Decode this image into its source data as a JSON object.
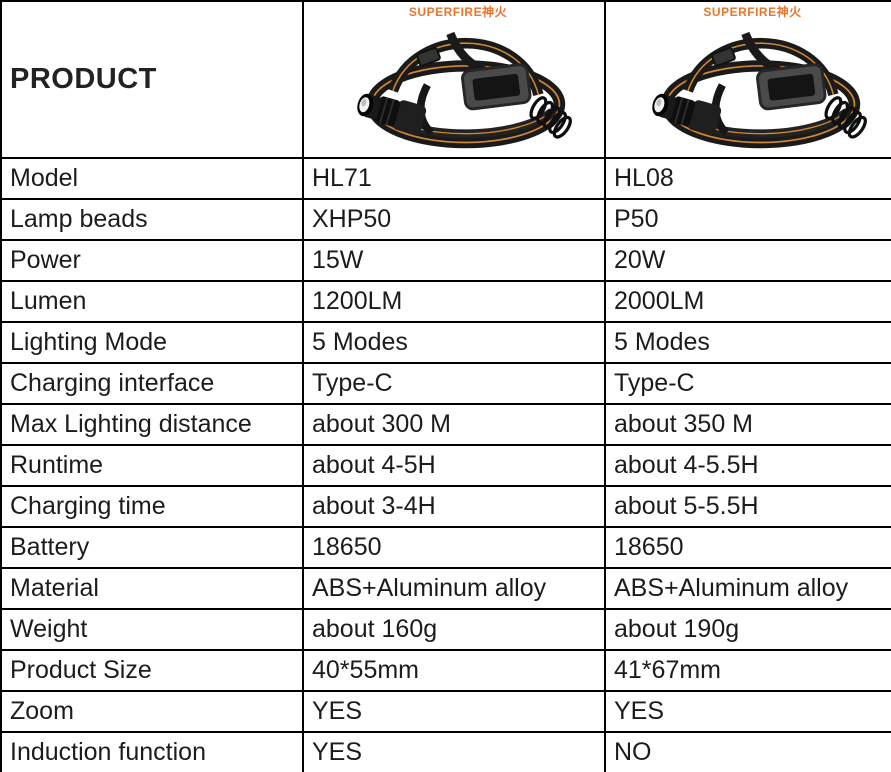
{
  "table": {
    "header": {
      "title": "PRODUCT",
      "products": [
        {
          "brand": "SUPERFIRE神火"
        },
        {
          "brand": "SUPERFIRE神火"
        }
      ]
    },
    "rows": [
      {
        "label": "Model",
        "col1": "HL71",
        "col2": "HL08"
      },
      {
        "label": "Lamp beads",
        "col1": "XHP50",
        "col2": "P50"
      },
      {
        "label": "Power",
        "col1": "15W",
        "col2": "20W"
      },
      {
        "label": "Lumen",
        "col1": "1200LM",
        "col2": "2000LM"
      },
      {
        "label": "Lighting Mode",
        "col1": "5 Modes",
        "col2": "5 Modes"
      },
      {
        "label": "Charging interface",
        "col1": "Type-C",
        "col2": "Type-C"
      },
      {
        "label": "Max Lighting distance",
        "col1": "about 300 M",
        "col2": "about 350 M"
      },
      {
        "label": "Runtime",
        "col1": "about 4-5H",
        "col2": "about 4-5.5H"
      },
      {
        "label": "Charging time",
        "col1": "about 3-4H",
        "col2": "about 5-5.5H"
      },
      {
        "label": "Battery",
        "col1": "18650",
        "col2": "18650"
      },
      {
        "label": "Material",
        "col1": "ABS+Aluminum alloy",
        "col2": "ABS+Aluminum alloy"
      },
      {
        "label": "Weight",
        "col1": "about 160g",
        "col2": "about 190g"
      },
      {
        "label": "Product Size",
        "col1": "40*55mm",
        "col2": "41*67mm"
      },
      {
        "label": "Zoom",
        "col1": "YES",
        "col2": "YES"
      },
      {
        "label": "Induction function",
        "col1": "YES",
        "col2": "NO"
      }
    ],
    "colors": {
      "brand_orange": "#E8762C",
      "strap_orange": "#CF8730",
      "text": "#1C1C1C",
      "border": "#000000"
    }
  }
}
